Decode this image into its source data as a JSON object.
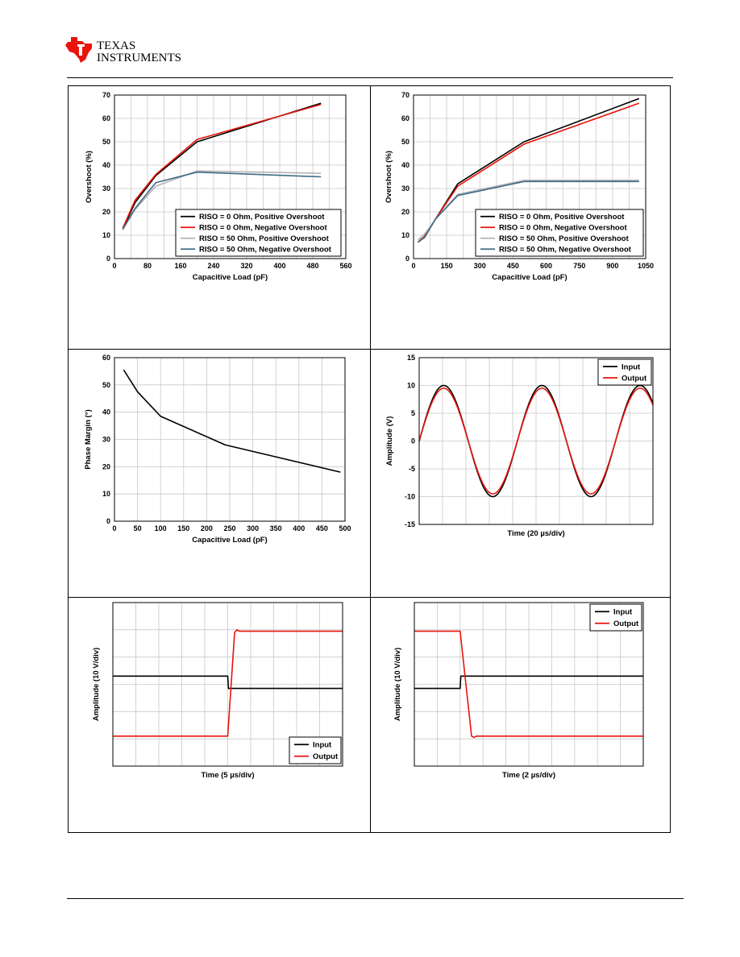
{
  "brand": {
    "line1": "TEXAS",
    "line2": "INSTRUMENTS"
  },
  "chart_data": [
    {
      "id": "c1",
      "type": "line",
      "xlabel": "Capacitive Load (pF)",
      "ylabel": "Overshoot (%)",
      "xlim": [
        0,
        560
      ],
      "ylim": [
        0,
        70
      ],
      "xticks": [
        0,
        80,
        160,
        240,
        320,
        400,
        480,
        560
      ],
      "yticks": [
        0,
        10,
        20,
        30,
        40,
        50,
        60,
        70
      ],
      "legend": "bottom-right",
      "series": [
        {
          "name": "RISO = 0 Ohm, Positive Overshoot",
          "color": "#000000",
          "x": [
            20,
            50,
            100,
            200,
            500
          ],
          "y": [
            12.5,
            24,
            35.5,
            50,
            66.5
          ]
        },
        {
          "name": "RISO = 0 Ohm, Negative Overshoot",
          "color": "#e8140c",
          "x": [
            20,
            50,
            100,
            200,
            500
          ],
          "y": [
            13,
            25,
            36,
            51,
            66
          ]
        },
        {
          "name": "RISO = 50 Ohm, Positive Overshoot",
          "color": "#b4b4b4",
          "x": [
            20,
            50,
            100,
            200,
            500
          ],
          "y": [
            12.5,
            21,
            31,
            37.5,
            36.5
          ]
        },
        {
          "name": "RISO = 50 Ohm, Negative Overshoot",
          "color": "#3e6b84",
          "x": [
            20,
            50,
            100,
            200,
            500
          ],
          "y": [
            12.5,
            21.5,
            32.5,
            37,
            35
          ]
        }
      ]
    },
    {
      "id": "c2",
      "type": "line",
      "xlabel": "Capacitive Load (pF)",
      "ylabel": "Overshoot (%)",
      "xlim": [
        0,
        1050
      ],
      "ylim": [
        0,
        70
      ],
      "xticks": [
        0,
        150,
        300,
        450,
        600,
        750,
        900,
        1050
      ],
      "yticks": [
        0,
        10,
        20,
        30,
        40,
        50,
        60,
        70
      ],
      "legend": "bottom-right",
      "series": [
        {
          "name": "RISO = 0 Ohm, Positive Overshoot",
          "color": "#000000",
          "x": [
            20,
            50,
            100,
            200,
            500,
            1020
          ],
          "y": [
            7,
            9.5,
            17,
            32,
            50,
            68.5
          ]
        },
        {
          "name": "RISO = 0 Ohm, Negative Overshoot",
          "color": "#e8140c",
          "x": [
            20,
            50,
            100,
            200,
            500,
            1020
          ],
          "y": [
            7,
            9.5,
            17,
            31,
            49,
            66.5
          ]
        },
        {
          "name": "RISO = 50 Ohm, Positive Overshoot",
          "color": "#b4b4b4",
          "x": [
            20,
            50,
            100,
            200,
            500,
            1020
          ],
          "y": [
            8,
            10.5,
            17,
            27.5,
            33.5,
            33.5
          ]
        },
        {
          "name": "RISO = 50 Ohm, Negative Overshoot",
          "color": "#3e6b84",
          "x": [
            20,
            50,
            100,
            200,
            500,
            1020
          ],
          "y": [
            7,
            9,
            17,
            27,
            33,
            33
          ]
        }
      ]
    },
    {
      "id": "c3",
      "type": "line",
      "xlabel": "Capacitive Load (pF)",
      "ylabel": "Phase Margin (°)",
      "xlim": [
        0,
        500
      ],
      "ylim": [
        0,
        60
      ],
      "xticks": [
        0,
        50,
        100,
        150,
        200,
        250,
        300,
        350,
        400,
        450,
        500
      ],
      "yticks": [
        0,
        10,
        20,
        30,
        40,
        50,
        60
      ],
      "series": [
        {
          "name": "",
          "color": "#000000",
          "x": [
            20,
            50,
            100,
            240,
            490
          ],
          "y": [
            55.5,
            47.5,
            38.5,
            28,
            18
          ]
        }
      ]
    },
    {
      "id": "c4",
      "type": "line",
      "xlabel": "Time (20 µs/div)",
      "ylabel": "Amplitude (V)",
      "xlim": [
        0,
        10
      ],
      "ylim": [
        -15,
        15
      ],
      "xticks": [],
      "xgrid": 10,
      "yticks": [
        -15,
        -10,
        -5,
        0,
        5,
        10,
        15
      ],
      "legend": "top-right",
      "waveform": "sine",
      "period_div": 4.2,
      "start_div": 0,
      "series": [
        {
          "name": "Input",
          "color": "#000000",
          "amplitude": 10
        },
        {
          "name": "Output",
          "color": "#e8140c",
          "amplitude": 9.5
        }
      ]
    },
    {
      "id": "c5",
      "type": "line",
      "xlabel": "Time (5 µs/div)",
      "ylabel": "Amplitude (10 V/div)",
      "xlim": [
        0,
        10
      ],
      "ylim": [
        -3,
        3
      ],
      "xticks": [],
      "xgrid": 10,
      "ygrid": 6,
      "yticks": [],
      "legend": "bottom-right",
      "series": [
        {
          "name": "Input",
          "color": "#000000",
          "x": [
            0,
            5.0,
            5.03,
            5.2,
            10
          ],
          "y": [
            0.3,
            0.3,
            -0.15,
            -0.15,
            -0.15
          ]
        },
        {
          "name": "Output",
          "color": "#e8140c",
          "x": [
            0,
            5.0,
            5.3,
            5.4,
            5.5,
            10
          ],
          "y": [
            -1.9,
            -1.9,
            1.9,
            2.0,
            1.95,
            1.95
          ]
        }
      ]
    },
    {
      "id": "c6",
      "type": "line",
      "xlabel": "Time (2 µs/div)",
      "ylabel": "Amplitude (10 V/div)",
      "xlim": [
        0,
        10
      ],
      "ylim": [
        -3,
        3
      ],
      "xticks": [],
      "xgrid": 10,
      "ygrid": 6,
      "yticks": [],
      "legend": "top-right",
      "series": [
        {
          "name": "Input",
          "color": "#000000",
          "x": [
            0,
            2.0,
            2.03,
            3.5,
            10
          ],
          "y": [
            -0.15,
            -0.15,
            0.3,
            0.3,
            0.3
          ]
        },
        {
          "name": "Output",
          "color": "#e8140c",
          "x": [
            0,
            2.0,
            2.5,
            2.6,
            2.7,
            10
          ],
          "y": [
            1.95,
            1.95,
            -1.9,
            -1.95,
            -1.9,
            -1.9
          ]
        }
      ]
    }
  ]
}
